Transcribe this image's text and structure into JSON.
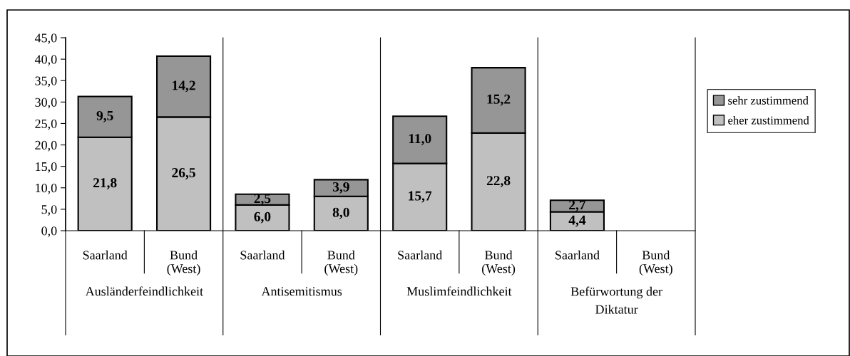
{
  "chart_data": {
    "type": "bar",
    "stacked": true,
    "categories": [
      "Saarland",
      "Bund\n(West)",
      "Saarland",
      "Bund\n(West)",
      "Saarland",
      "Bund\n(West)",
      "Saarland",
      "Bund\n(West)"
    ],
    "series": [
      {
        "name": "eher zustimmend",
        "color": "#c0c0c0",
        "values": [
          21.8,
          26.5,
          6.0,
          8.0,
          15.7,
          22.8,
          4.4,
          null
        ],
        "value_labels": [
          "21,8",
          "26,5",
          "6,0",
          "8,0",
          "15,7",
          "22,8",
          "4,4",
          null
        ]
      },
      {
        "name": "sehr zustimmend",
        "color": "#969696",
        "values": [
          9.5,
          14.2,
          2.5,
          3.9,
          11.0,
          15.2,
          2.7,
          null
        ],
        "value_labels": [
          "9,5",
          "14,2",
          "2,5",
          "3,9",
          "11,0",
          "15,2",
          "2,7",
          null
        ]
      }
    ],
    "annotations": [
      "Ausländerfeindlichkeit",
      "Antisemitismus",
      "Muslimfeindlichkeit",
      "Befürwortung der\nDiktatur"
    ],
    "ylim": [
      0,
      45
    ],
    "yticks": [
      {
        "value": 0,
        "label": "0,0"
      },
      {
        "value": 5,
        "label": "5,0"
      },
      {
        "value": 10,
        "label": "10,0"
      },
      {
        "value": 15,
        "label": "15,0"
      },
      {
        "value": 20,
        "label": "20,0"
      },
      {
        "value": 25,
        "label": "25,0"
      },
      {
        "value": 30,
        "label": "30,0"
      },
      {
        "value": 35,
        "label": "35,0"
      },
      {
        "value": 40,
        "label": "40,0"
      },
      {
        "value": 45,
        "label": "45,0"
      }
    ],
    "grid": false,
    "legend": "right"
  }
}
